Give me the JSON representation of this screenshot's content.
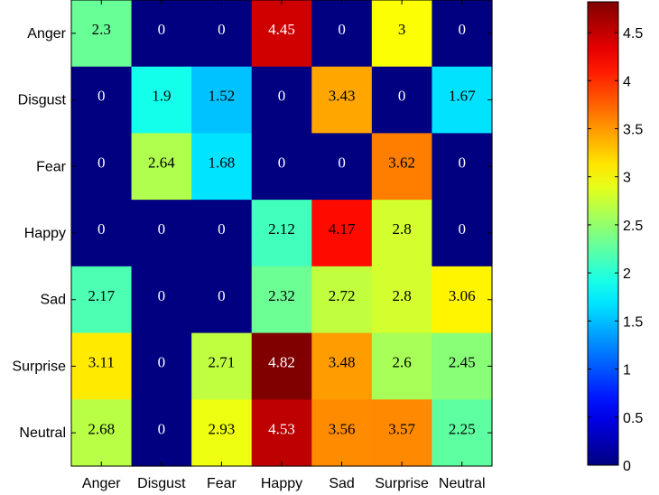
{
  "chart_data": {
    "type": "heatmap",
    "rows": [
      "Anger",
      "Disgust",
      "Fear",
      "Happy",
      "Sad",
      "Surprise",
      "Neutral"
    ],
    "columns": [
      "Anger",
      "Disgust",
      "Fear",
      "Happy",
      "Sad",
      "Surprise",
      "Neutral"
    ],
    "values": [
      [
        2.3,
        0,
        0,
        4.45,
        0,
        3,
        0
      ],
      [
        0,
        1.9,
        1.52,
        0,
        3.43,
        0,
        1.67
      ],
      [
        0,
        2.64,
        1.68,
        0,
        0,
        3.62,
        0
      ],
      [
        0,
        0,
        0,
        2.12,
        4.17,
        2.8,
        0
      ],
      [
        2.17,
        0,
        0,
        2.32,
        2.72,
        2.8,
        3.06
      ],
      [
        3.11,
        0,
        2.71,
        4.82,
        3.48,
        2.6,
        2.45
      ],
      [
        2.68,
        0,
        2.93,
        4.53,
        3.56,
        3.57,
        2.25
      ]
    ],
    "value_labels": [
      [
        "2.3",
        "0",
        "0",
        "4.45",
        "0",
        "3",
        "0"
      ],
      [
        "0",
        "1.9",
        "1.52",
        "0",
        "3.43",
        "0",
        "1.67"
      ],
      [
        "0",
        "2.64",
        "1.68",
        "0",
        "0",
        "3.62",
        "0"
      ],
      [
        "0",
        "0",
        "0",
        "2.12",
        "4.17",
        "2.8",
        "0"
      ],
      [
        "2.17",
        "0",
        "0",
        "2.32",
        "2.72",
        "2.8",
        "3.06"
      ],
      [
        "3.11",
        "0",
        "2.71",
        "4.82",
        "3.48",
        "2.6",
        "2.45"
      ],
      [
        "2.68",
        "0",
        "2.93",
        "4.53",
        "3.56",
        "3.57",
        "2.25"
      ]
    ],
    "colormap": "jet",
    "color_range": [
      0,
      4.82
    ],
    "colorbar": {
      "ticks": [
        0,
        0.5,
        1,
        1.5,
        2,
        2.5,
        3,
        3.5,
        4,
        4.5
      ],
      "tick_labels": [
        "0",
        "0.5",
        "1",
        "1.5",
        "2",
        "2.5",
        "3",
        "3.5",
        "4",
        "4.5"
      ],
      "placement": "right"
    },
    "grid": false
  }
}
